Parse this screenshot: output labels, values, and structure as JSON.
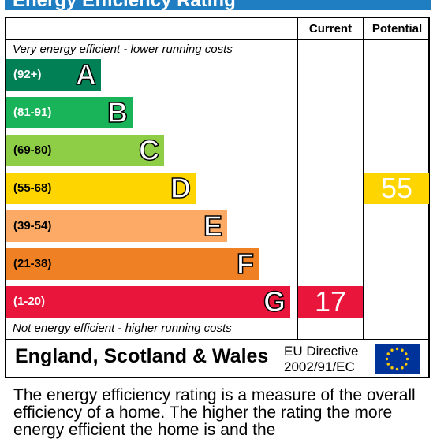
{
  "title": "Energy Efficiency Rating",
  "headers": {
    "current": "Current",
    "potential": "Potential"
  },
  "top_note": "Very energy efficient - lower running costs",
  "bottom_note": "Not energy efficient - higher running costs",
  "colors": {
    "title_bar": "#1f7dc1",
    "A": "#008054",
    "B": "#19b459",
    "C": "#8dce46",
    "D": "#ffd500",
    "E": "#fcaa65",
    "F": "#ef8023",
    "G": "#e9153b"
  },
  "chart_data": {
    "type": "table",
    "bands": [
      {
        "letter": "A",
        "range": "(92+)"
      },
      {
        "letter": "B",
        "range": "(81-91)"
      },
      {
        "letter": "C",
        "range": "(69-80)"
      },
      {
        "letter": "D",
        "range": "(55-68)"
      },
      {
        "letter": "E",
        "range": "(39-54)"
      },
      {
        "letter": "F",
        "range": "(21-38)"
      },
      {
        "letter": "G",
        "range": "(1-20)"
      }
    ],
    "current": {
      "value": "17",
      "band": "G"
    },
    "potential": {
      "value": "55",
      "band": "D"
    }
  },
  "footer": {
    "region": "England, Scotland & Wales",
    "directive_line1": "EU Directive",
    "directive_line2": "2002/91/EC",
    "flag_icon": "eu-flag-icon"
  },
  "description": "The energy efficiency rating is a measure of the overall efficiency of a home. The higher the rating the more energy efficient the home is and the"
}
